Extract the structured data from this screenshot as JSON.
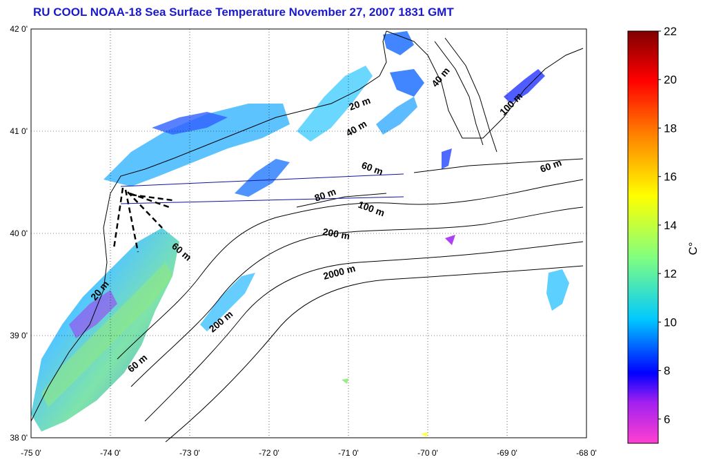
{
  "title": "RU COOL  NOAA-18 Sea Surface Temperature November 27, 2007 1831 GMT",
  "map": {
    "lon_range": [
      -75,
      -68
    ],
    "lat_range": [
      38,
      42
    ],
    "lon_ticks": [
      "-75 0'",
      "-74 0'",
      "-73 0'",
      "-72 0'",
      "-71 0'",
      "-70 0'",
      "-69 0'",
      "-68 0'"
    ],
    "lat_ticks": [
      "38 0'",
      "39 0'",
      "40 0'",
      "41 0'",
      "42 0'"
    ],
    "grid": "dotted",
    "contour_labels": [
      "20 m",
      "40 m",
      "40 m",
      "60 m",
      "60 m",
      "80 m",
      "100 m",
      "100 m",
      "200 m",
      "200 m",
      "2000 m",
      "60 m",
      "60 m",
      "20 m"
    ]
  },
  "colorbar": {
    "label": "C°",
    "ticks": [
      "6",
      "8",
      "10",
      "12",
      "14",
      "16",
      "18",
      "20",
      "22"
    ],
    "range": [
      5,
      22
    ],
    "colors": [
      "#ff40d0",
      "#a020f0",
      "#0000ff",
      "#00c8ff",
      "#80ff80",
      "#ffff00",
      "#ff8000",
      "#ff0000",
      "#800000"
    ]
  }
}
